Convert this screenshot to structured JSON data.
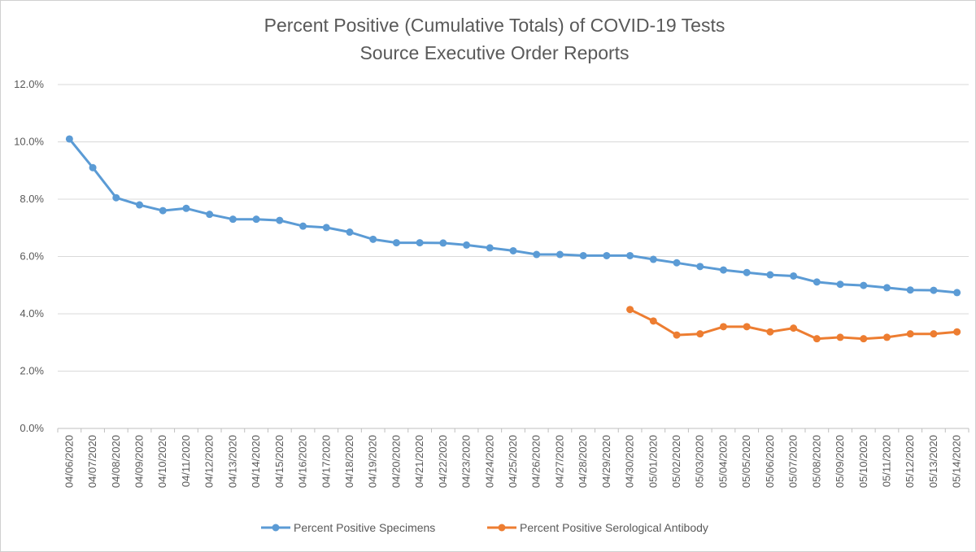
{
  "chart_data": {
    "type": "line",
    "title": "Percent Positive (Cumulative Totals) of COVID-19 Tests",
    "subtitle": "Source Executive Order Reports",
    "xlabel": "",
    "ylabel": "",
    "ylim": [
      0,
      12
    ],
    "y_ticks": [
      0,
      2,
      4,
      6,
      8,
      10,
      12
    ],
    "y_tick_labels": [
      "0.0%",
      "2.0%",
      "4.0%",
      "6.0%",
      "8.0%",
      "10.0%",
      "12.0%"
    ],
    "grid": true,
    "legend_position": "bottom",
    "categories": [
      "04/06/2020",
      "04/07/2020",
      "04/08/2020",
      "04/09/2020",
      "04/10/2020",
      "04/11/2020",
      "04/12/2020",
      "04/13/2020",
      "04/14/2020",
      "04/15/2020",
      "04/16/2020",
      "04/17/2020",
      "04/18/2020",
      "04/19/2020",
      "04/20/2020",
      "04/21/2020",
      "04/22/2020",
      "04/23/2020",
      "04/24/2020",
      "04/25/2020",
      "04/26/2020",
      "04/27/2020",
      "04/28/2020",
      "04/29/2020",
      "04/30/2020",
      "05/01/2020",
      "05/02/2020",
      "05/03/2020",
      "05/04/2020",
      "05/05/2020",
      "05/06/2020",
      "05/07/2020",
      "05/08/2020",
      "05/09/2020",
      "05/10/2020",
      "05/11/2020",
      "05/12/2020",
      "05/13/2020",
      "05/14/2020"
    ],
    "series": [
      {
        "name": "Percent Positive Specimens",
        "color": "#5b9bd5",
        "values": [
          10.1,
          9.1,
          8.05,
          7.8,
          7.6,
          7.68,
          7.47,
          7.3,
          7.3,
          7.26,
          7.06,
          7.01,
          6.85,
          6.6,
          6.48,
          6.48,
          6.47,
          6.4,
          6.3,
          6.2,
          6.07,
          6.07,
          6.03,
          6.03,
          6.03,
          5.9,
          5.78,
          5.65,
          5.53,
          5.44,
          5.36,
          5.32,
          5.11,
          5.03,
          4.99,
          4.91,
          4.83,
          4.82,
          4.74
        ]
      },
      {
        "name": "Percent Positive Serological Antibody",
        "color": "#ed7d31",
        "values": [
          null,
          null,
          null,
          null,
          null,
          null,
          null,
          null,
          null,
          null,
          null,
          null,
          null,
          null,
          null,
          null,
          null,
          null,
          null,
          null,
          null,
          null,
          null,
          null,
          4.15,
          3.75,
          3.26,
          3.3,
          3.55,
          3.55,
          3.37,
          3.5,
          3.13,
          3.18,
          3.13,
          3.18,
          3.3,
          3.3,
          3.37
        ]
      }
    ]
  }
}
